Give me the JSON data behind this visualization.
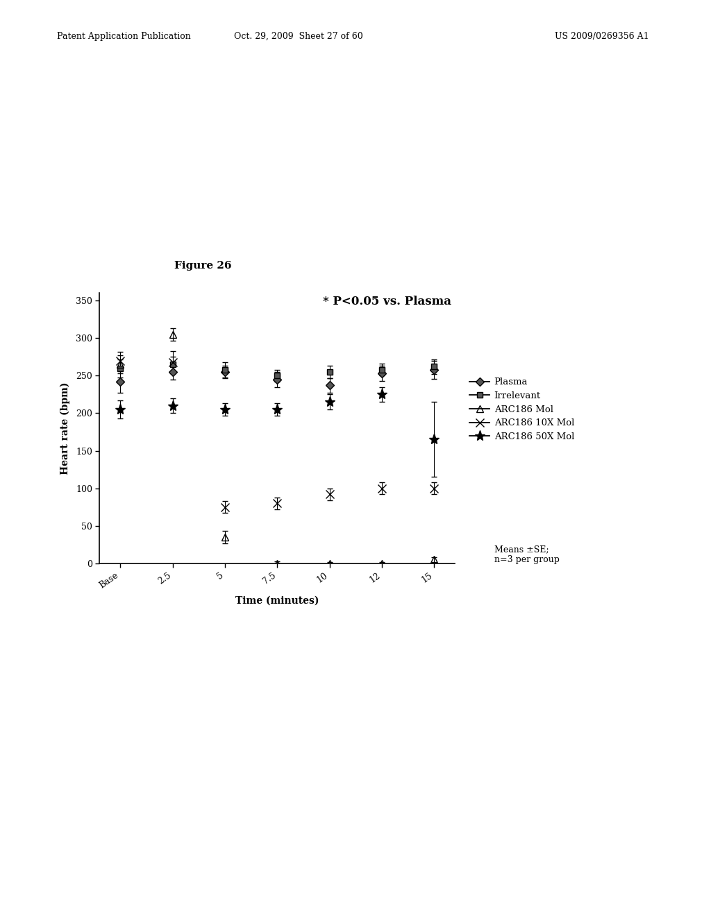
{
  "figure_label": "Figure 26",
  "xlabel": "Time (minutes)",
  "ylabel": "Heart rate (bpm)",
  "annotation": "* P<0.05 vs. Plasma",
  "footnote": "Means ±SE;\nn=3 per group",
  "ylim": [
    0,
    360
  ],
  "yticks": [
    0,
    50,
    100,
    150,
    200,
    250,
    300,
    350
  ],
  "xtick_labels": [
    "Base",
    "2.5",
    "5",
    "7.5",
    "10",
    "12",
    "15"
  ],
  "x_values": [
    0,
    1,
    2,
    3,
    4,
    5,
    6
  ],
  "series_props": [
    {
      "name": "Plasma",
      "y": [
        242,
        255,
        255,
        245,
        237,
        253,
        258
      ],
      "yerr": [
        15,
        10,
        8,
        10,
        10,
        10,
        12
      ],
      "marker": "D",
      "mfc": "#555555",
      "mec": "#000000",
      "ms": 6
    },
    {
      "name": "Irrelevant",
      "y": [
        260,
        265,
        258,
        250,
        255,
        258,
        262
      ],
      "yerr": [
        12,
        10,
        10,
        8,
        8,
        8,
        10
      ],
      "marker": "s",
      "mfc": "#555555",
      "mec": "#000000",
      "ms": 6
    },
    {
      "name": "ARC186 Mol",
      "y": [
        265,
        305,
        35,
        0,
        0,
        0,
        5
      ],
      "yerr": [
        12,
        8,
        8,
        3,
        2,
        2,
        3
      ],
      "marker": "^",
      "mfc": "none",
      "mec": "#000000",
      "ms": 7
    },
    {
      "name": "ARC186 10X Mol",
      "y": [
        270,
        268,
        75,
        80,
        92,
        100,
        100
      ],
      "yerr": [
        12,
        15,
        8,
        8,
        8,
        8,
        8
      ],
      "marker": "x",
      "mfc": "none",
      "mec": "#000000",
      "ms": 8
    },
    {
      "name": "ARC186 50X Mol",
      "y": [
        205,
        210,
        205,
        205,
        215,
        225,
        165
      ],
      "yerr": [
        12,
        10,
        8,
        8,
        10,
        10,
        50
      ],
      "marker": "*",
      "mfc": "#000000",
      "mec": "#000000",
      "ms": 11
    }
  ],
  "background_color": "#ffffff",
  "header_left": "Patent Application Publication",
  "header_mid": "Oct. 29, 2009  Sheet 27 of 60",
  "header_right": "US 2009/0269356 A1"
}
